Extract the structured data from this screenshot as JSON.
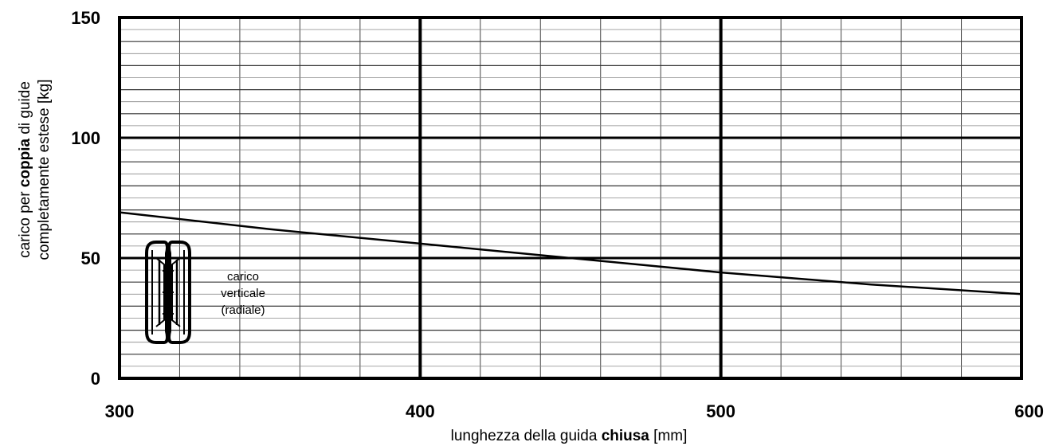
{
  "chart_data": {
    "type": "line",
    "title": "",
    "xlabel": {
      "part1": "lunghezza della guida ",
      "bold": "chiusa",
      "part2": " [mm]"
    },
    "ylabel": {
      "line1_part1": "carico per ",
      "line1_bold": "coppia",
      "line1_part2": " di guide",
      "line2": "completamente estese [kg]"
    },
    "xlim": [
      300,
      600
    ],
    "ylim": [
      0,
      150
    ],
    "x_ticks": [
      300,
      400,
      500,
      600
    ],
    "y_ticks": [
      0,
      50,
      100,
      150
    ],
    "x_tick_labels": [
      "300",
      "400",
      "500",
      "600"
    ],
    "y_tick_labels": [
      "0",
      "50",
      "100",
      "150"
    ],
    "grid": true,
    "series": [
      {
        "x": [
          300,
          350,
          400,
          450,
          500,
          550,
          600
        ],
        "y": [
          69,
          62,
          56,
          50,
          44,
          39,
          35
        ]
      }
    ],
    "annotation": {
      "lines": [
        "carico",
        "verticale",
        "(radiale)"
      ],
      "icon": "guide-rail-cross-section-icon"
    }
  }
}
